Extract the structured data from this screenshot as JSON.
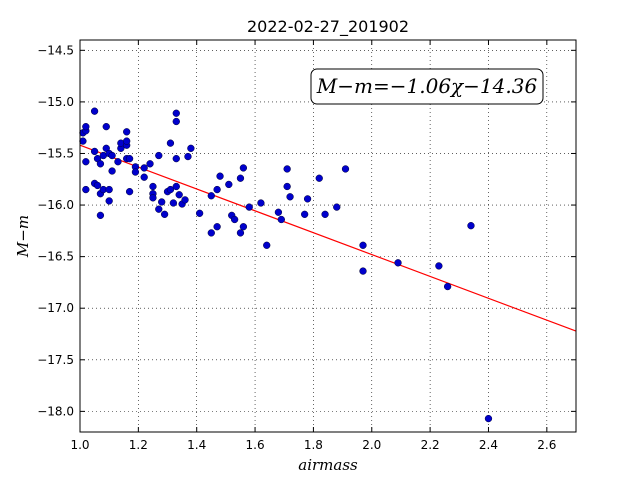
{
  "chart_data": {
    "type": "scatter",
    "title": "2022-02-27_201902",
    "xlabel": "airmass",
    "ylabel": "M−m",
    "xlim": [
      1.0,
      2.7
    ],
    "ylim": [
      -18.2,
      -14.4
    ],
    "x_ticks": [
      1.0,
      1.2,
      1.4,
      1.6,
      1.8,
      2.0,
      2.2,
      2.4,
      2.6
    ],
    "x_tick_labels": [
      "1.0",
      "1.2",
      "1.4",
      "1.6",
      "1.8",
      "2.0",
      "2.2",
      "2.4",
      "2.6"
    ],
    "y_ticks": [
      -14.5,
      -15.0,
      -15.5,
      -16.0,
      -16.5,
      -17.0,
      -17.5,
      -18.0
    ],
    "y_tick_labels": [
      "−14.5",
      "−15.0",
      "−15.5",
      "−16.0",
      "−16.5",
      "−17.0",
      "−17.5",
      "−18.0"
    ],
    "grid": true,
    "annotation": "M−m=−1.06χ−14.36",
    "fit": {
      "slope": -1.06,
      "intercept": -14.36,
      "color": "#ff0000"
    },
    "point_color": "#0000cc",
    "points": [
      [
        1.01,
        -15.38
      ],
      [
        1.01,
        -15.3
      ],
      [
        1.02,
        -15.28
      ],
      [
        1.02,
        -15.24
      ],
      [
        1.02,
        -15.58
      ],
      [
        1.02,
        -15.85
      ],
      [
        1.05,
        -15.09
      ],
      [
        1.05,
        -15.48
      ],
      [
        1.05,
        -15.79
      ],
      [
        1.06,
        -15.55
      ],
      [
        1.06,
        -15.81
      ],
      [
        1.07,
        -15.6
      ],
      [
        1.07,
        -15.89
      ],
      [
        1.07,
        -16.1
      ],
      [
        1.08,
        -15.85
      ],
      [
        1.08,
        -15.52
      ],
      [
        1.09,
        -15.24
      ],
      [
        1.09,
        -15.45
      ],
      [
        1.1,
        -15.5
      ],
      [
        1.1,
        -15.85
      ],
      [
        1.1,
        -15.96
      ],
      [
        1.11,
        -15.67
      ],
      [
        1.11,
        -15.52
      ],
      [
        1.13,
        -15.58
      ],
      [
        1.14,
        -15.45
      ],
      [
        1.14,
        -15.4
      ],
      [
        1.16,
        -15.55
      ],
      [
        1.16,
        -15.42
      ],
      [
        1.16,
        -15.38
      ],
      [
        1.16,
        -15.29
      ],
      [
        1.17,
        -15.55
      ],
      [
        1.17,
        -15.87
      ],
      [
        1.19,
        -15.63
      ],
      [
        1.19,
        -15.68
      ],
      [
        1.22,
        -15.73
      ],
      [
        1.22,
        -15.64
      ],
      [
        1.24,
        -15.6
      ],
      [
        1.25,
        -15.82
      ],
      [
        1.25,
        -15.89
      ],
      [
        1.25,
        -15.93
      ],
      [
        1.27,
        -15.52
      ],
      [
        1.27,
        -16.04
      ],
      [
        1.28,
        -15.97
      ],
      [
        1.29,
        -16.09
      ],
      [
        1.3,
        -15.87
      ],
      [
        1.31,
        -15.85
      ],
      [
        1.31,
        -15.4
      ],
      [
        1.32,
        -15.98
      ],
      [
        1.33,
        -15.82
      ],
      [
        1.33,
        -15.11
      ],
      [
        1.33,
        -15.19
      ],
      [
        1.33,
        -15.55
      ],
      [
        1.34,
        -15.9
      ],
      [
        1.35,
        -15.99
      ],
      [
        1.36,
        -15.95
      ],
      [
        1.37,
        -15.53
      ],
      [
        1.38,
        -15.45
      ],
      [
        1.41,
        -16.08
      ],
      [
        1.45,
        -15.91
      ],
      [
        1.45,
        -16.27
      ],
      [
        1.47,
        -15.85
      ],
      [
        1.47,
        -16.21
      ],
      [
        1.48,
        -15.72
      ],
      [
        1.51,
        -15.8
      ],
      [
        1.52,
        -16.1
      ],
      [
        1.53,
        -16.14
      ],
      [
        1.55,
        -15.74
      ],
      [
        1.55,
        -16.27
      ],
      [
        1.56,
        -16.21
      ],
      [
        1.56,
        -15.64
      ],
      [
        1.58,
        -16.02
      ],
      [
        1.62,
        -15.98
      ],
      [
        1.64,
        -16.39
      ],
      [
        1.68,
        -16.07
      ],
      [
        1.69,
        -16.14
      ],
      [
        1.71,
        -15.82
      ],
      [
        1.71,
        -15.65
      ],
      [
        1.72,
        -15.92
      ],
      [
        1.77,
        -16.09
      ],
      [
        1.78,
        -15.94
      ],
      [
        1.82,
        -15.74
      ],
      [
        1.84,
        -16.09
      ],
      [
        1.88,
        -16.02
      ],
      [
        1.91,
        -15.65
      ],
      [
        1.97,
        -16.64
      ],
      [
        1.97,
        -16.39
      ],
      [
        2.09,
        -16.56
      ],
      [
        2.23,
        -16.59
      ],
      [
        2.26,
        -16.79
      ],
      [
        2.34,
        -16.2
      ],
      [
        2.4,
        -18.07
      ]
    ]
  }
}
